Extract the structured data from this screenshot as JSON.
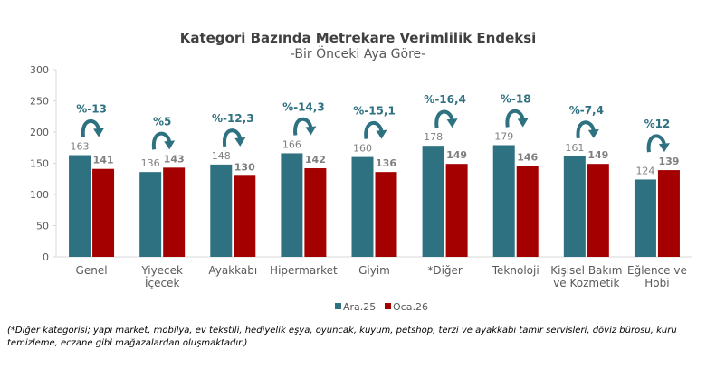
{
  "chart_data": {
    "type": "bar",
    "title": "Kategori Bazında Metrekare Verimlilik Endeksi",
    "subtitle": "-Bir Önceki Aya Göre-",
    "categories": [
      [
        "Genel"
      ],
      [
        "Yiyecek",
        "İçecek"
      ],
      [
        "Ayakkabı"
      ],
      [
        "Hipermarket"
      ],
      [
        "Giyim"
      ],
      [
        "*Diğer"
      ],
      [
        "Teknoloji"
      ],
      [
        "Kişisel Bakım",
        "ve Kozmetik"
      ],
      [
        "Eğlence ve",
        "Hobi"
      ]
    ],
    "series": [
      {
        "name": "Ara.25",
        "color": "#2E7180",
        "values": [
          163,
          136,
          148,
          166,
          160,
          178,
          179,
          161,
          124
        ]
      },
      {
        "name": "Oca.26",
        "color": "#A50000",
        "values": [
          141,
          143,
          130,
          142,
          136,
          149,
          146,
          149,
          139
        ]
      }
    ],
    "change_labels": [
      "%-13",
      "%5",
      "%-12,3",
      "%-14,3",
      "%-15,1",
      "%-16,4",
      "%-18",
      "%-7,4",
      "%12"
    ],
    "yticks": [
      0,
      50,
      100,
      150,
      200,
      250,
      300
    ],
    "ylim": [
      0,
      300
    ],
    "legend": "bottom",
    "grid": false
  },
  "note": "(*Diğer kategorisi; yapı market, mobilya, ev tekstili, hediyelik eşya, oyuncak, kuyum, petshop, terzi ve ayakkabı tamir servisleri, döviz bürosu, kuru temizleme, eczane gibi mağazalardan oluşmaktadır.)"
}
